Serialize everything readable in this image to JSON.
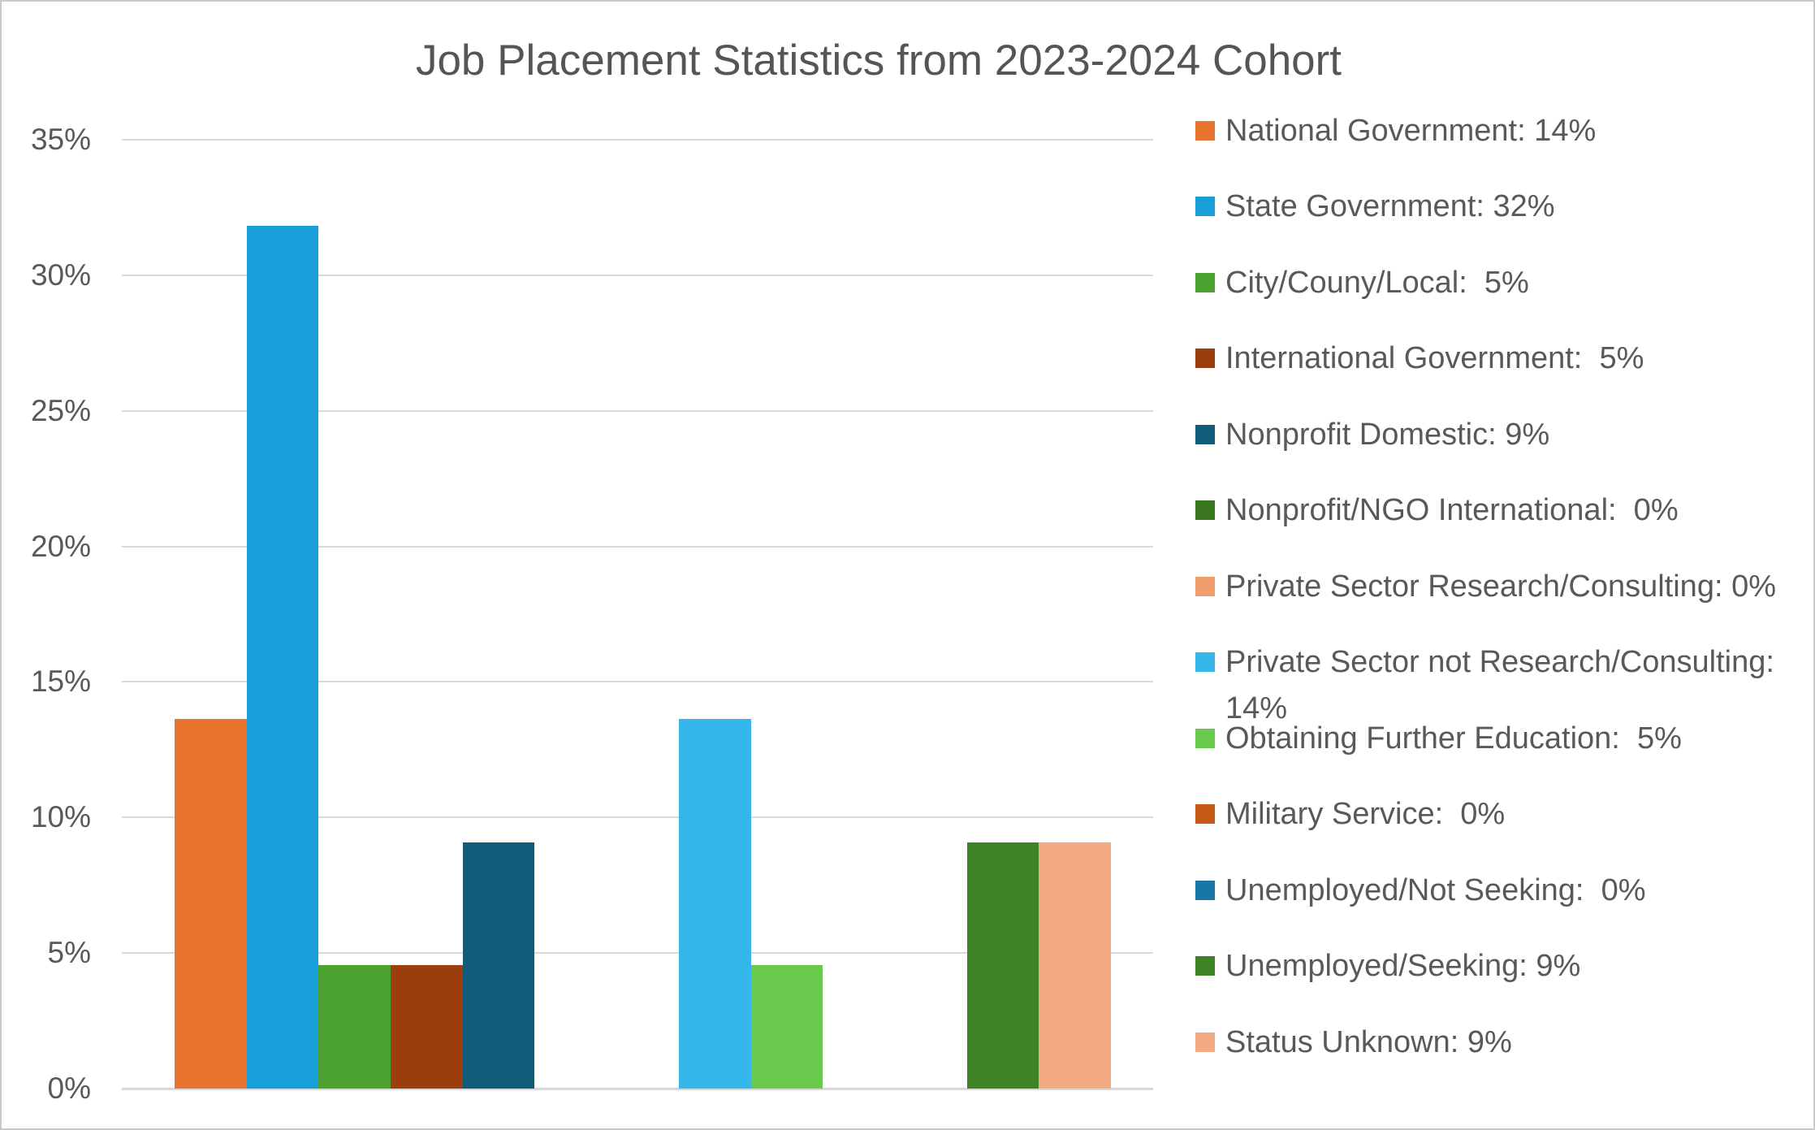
{
  "chart_data": {
    "type": "bar",
    "title": "Job Placement Statistics from 2023-2024 Cohort",
    "categories": [
      "2023-2024 Cohort"
    ],
    "xlabel": "",
    "ylabel": "",
    "ylim": [
      0,
      35
    ],
    "ytick_values": [
      0,
      5,
      10,
      15,
      20,
      25,
      30,
      35
    ],
    "ytick_labels": [
      "0%",
      "5%",
      "10%",
      "15%",
      "20%",
      "25%",
      "30%",
      "35%"
    ],
    "grid": true,
    "legend_position": "right",
    "series": [
      {
        "name": "National Government",
        "legend_label": "National Government: 14%",
        "display_pct": 14,
        "value_pct": 13.64,
        "color": "#E8742F"
      },
      {
        "name": "State Government",
        "legend_label": "State Government: 32%",
        "display_pct": 32,
        "value_pct": 31.82,
        "color": "#189ED9"
      },
      {
        "name": "City/Couny/Local",
        "legend_label": "City/Couny/Local:  5%",
        "display_pct": 5,
        "value_pct": 4.55,
        "color": "#4CA32F"
      },
      {
        "name": "International Government",
        "legend_label": "International Government:  5%",
        "display_pct": 5,
        "value_pct": 4.55,
        "color": "#9C3D10"
      },
      {
        "name": "Nonprofit Domestic",
        "legend_label": "Nonprofit Domestic: 9%",
        "display_pct": 9,
        "value_pct": 9.09,
        "color": "#115C78"
      },
      {
        "name": "Nonprofit/NGO International",
        "legend_label": "Nonprofit/NGO International:  0%",
        "display_pct": 0,
        "value_pct": 0,
        "color": "#3A7520"
      },
      {
        "name": "Private Sector Research/Consulting",
        "legend_label": "Private Sector Research/Consulting: 0%",
        "display_pct": 0,
        "value_pct": 0,
        "color": "#EF9D6D"
      },
      {
        "name": "Private Sector not Research/Consulting",
        "legend_label": "Private Sector not Research/Consulting: 14%",
        "display_pct": 14,
        "value_pct": 13.64,
        "color": "#35B7EB"
      },
      {
        "name": "Obtaining Further Education",
        "legend_label": "Obtaining Further Education:  5%",
        "display_pct": 5,
        "value_pct": 4.55,
        "color": "#68C94D"
      },
      {
        "name": "Military Service",
        "legend_label": "Military Service:  0%",
        "display_pct": 0,
        "value_pct": 0,
        "color": "#C55A15"
      },
      {
        "name": "Unemployed/Not Seeking",
        "legend_label": "Unemployed/Not Seeking:  0%",
        "display_pct": 0,
        "value_pct": 0,
        "color": "#1777A4"
      },
      {
        "name": "Unemployed/Seeking",
        "legend_label": "Unemployed/Seeking: 9%",
        "display_pct": 9,
        "value_pct": 9.09,
        "color": "#3E8425"
      },
      {
        "name": "Status Unknown",
        "legend_label": "Status Unknown: 9%",
        "display_pct": 9,
        "value_pct": 9.09,
        "color": "#F2AB82"
      }
    ]
  },
  "colors": {
    "gridline": "#D9D9D9",
    "axis_text": "#595959",
    "title_text": "#555555",
    "frame_border": "#C9C9C9",
    "background": "#FFFFFF"
  }
}
